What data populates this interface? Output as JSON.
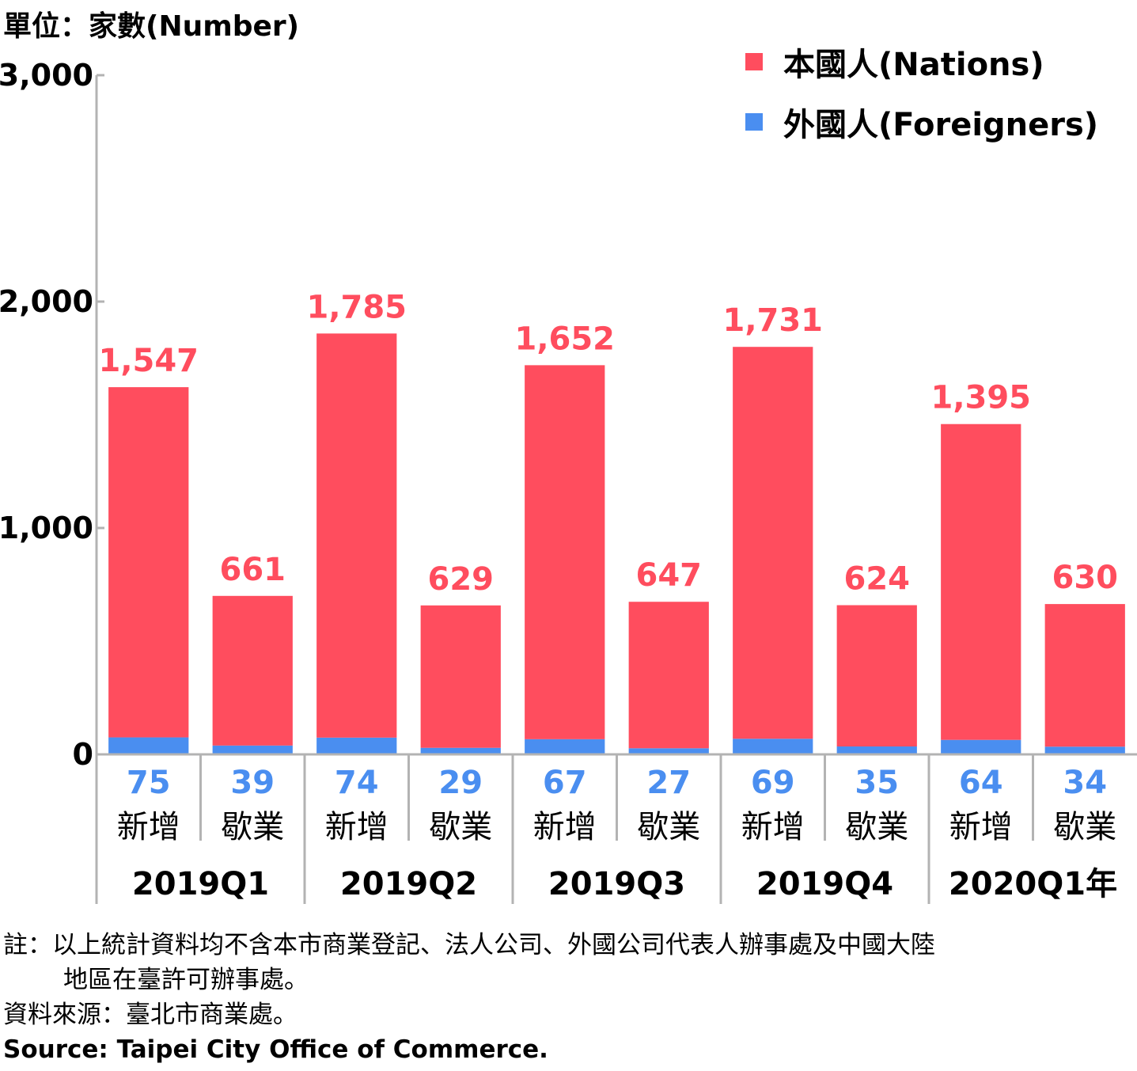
{
  "chart_data": {
    "type": "bar",
    "stacked": true,
    "unit_label": "單位：家數(Number)",
    "ylim": [
      0,
      3000
    ],
    "yticks": [
      "0",
      "1,000",
      "2,000",
      "3,000"
    ],
    "categories": [
      "新增",
      "歇業",
      "新增",
      "歇業",
      "新增",
      "歇業",
      "新增",
      "歇業",
      "新增",
      "歇業"
    ],
    "groups": [
      "2019Q1",
      "2019Q2",
      "2019Q3",
      "2019Q4",
      "2020Q1年"
    ],
    "series": [
      {
        "name": "外國人(Foreigners)",
        "color": "#4a8ef0",
        "values": [
          75,
          39,
          74,
          29,
          67,
          27,
          69,
          35,
          64,
          34
        ],
        "labels": [
          "75",
          "39",
          "74",
          "29",
          "67",
          "27",
          "69",
          "35",
          "64",
          "34"
        ]
      },
      {
        "name": "本國人(Nations)",
        "color": "#ff4d5e",
        "values": [
          1547,
          661,
          1785,
          629,
          1652,
          647,
          1731,
          624,
          1395,
          630
        ],
        "labels": [
          "1,547",
          "661",
          "1,785",
          "629",
          "1,652",
          "647",
          "1,731",
          "624",
          "1,395",
          "630"
        ]
      }
    ],
    "grid": false,
    "legend_position": "top-right"
  },
  "notes": {
    "line1": "註：以上統計資料均不含本市商業登記、法人公司、外國公司代表人辦事處及中國大陸",
    "line2": "地區在臺許可辦事處。",
    "source_zh": "資料來源：臺北市商業處。",
    "source_en": "Source: Taipei City Office of Commerce."
  }
}
